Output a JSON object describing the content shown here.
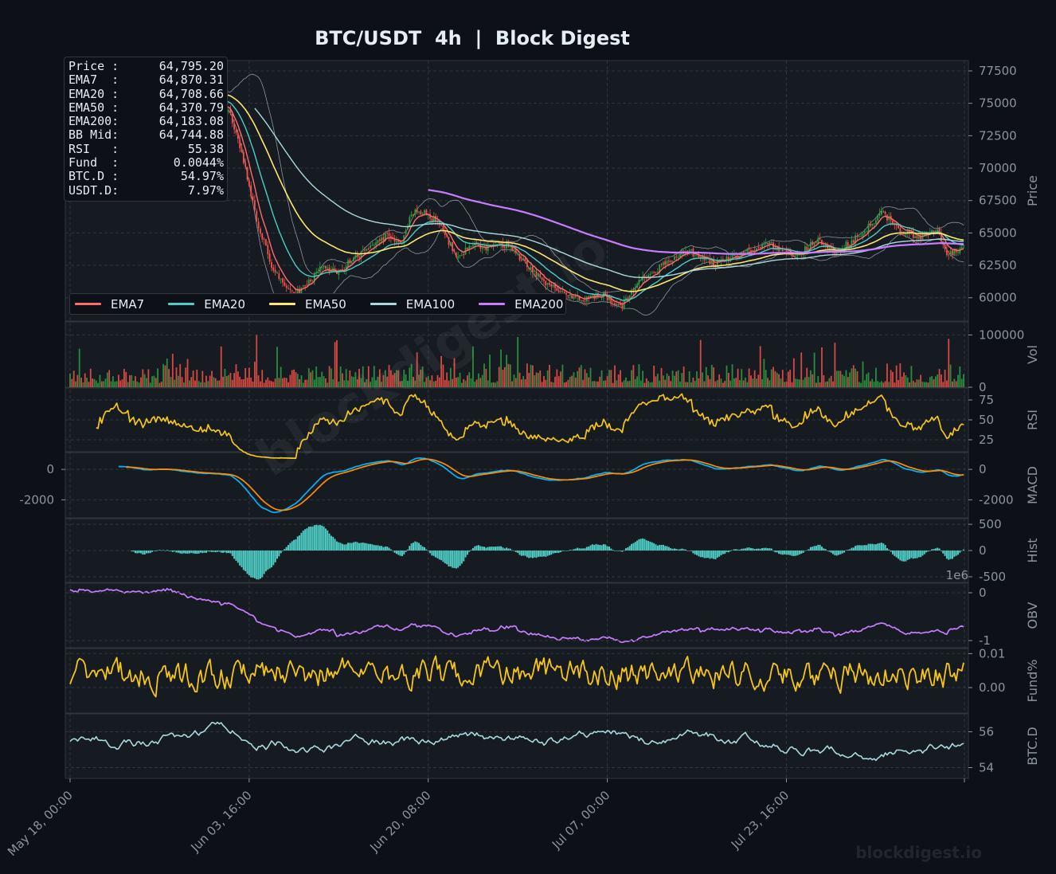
{
  "page": {
    "title": "BTC/USDT  4h  |  Block Digest",
    "watermark": "blockdigest.io",
    "footer_brand": "blockdigest.io"
  },
  "colors": {
    "background": "#0d1117",
    "panel": "#161b22",
    "grid": "#30363d",
    "axis_text": "#8b949e",
    "title": "#e6edf3",
    "up_candle": "#2ea043",
    "down_candle": "#f85149",
    "ema7": "#ff6b6b",
    "ema20": "#4ecdc4",
    "ema50": "#ffe66d",
    "ema100": "#a8dadc",
    "ema200": "#c77dff",
    "rsi": "#f5c518",
    "macd": "#00b4ff",
    "signal": "#ff8c00",
    "hist": "#4ecdc4",
    "obv": "#c77dff",
    "funding": "#f5c518",
    "btcd": "#a8dadc"
  },
  "info_box": {
    "rows": [
      {
        "label": "Price :",
        "value": "64,795.20"
      },
      {
        "label": "EMA7  :",
        "value": "64,870.31"
      },
      {
        "label": "EMA20 :",
        "value": "64,708.66"
      },
      {
        "label": "EMA50 :",
        "value": "64,370.79"
      },
      {
        "label": "EMA200:",
        "value": "64,183.08"
      },
      {
        "label": "BB Mid:",
        "value": "64,744.88"
      },
      {
        "label": "RSI   :",
        "value": "55.38"
      },
      {
        "label": "Fund  :",
        "value": "0.0044%"
      },
      {
        "label": "BTC.D :",
        "value": "54.97%"
      },
      {
        "label": "USDT.D:",
        "value": "7.97%"
      }
    ]
  },
  "chart_data": {
    "type": "line",
    "title": "BTC/USDT  4h  |  Block Digest",
    "x_tick_labels": [
      "May 18, 00:00",
      "Jun 03, 16:00",
      "Jun 20, 08:00",
      "Jul 07, 00:00",
      "Jul 23, 16:00"
    ],
    "bars_count": 480,
    "grid": true,
    "legend": {
      "placement": "lower-left of price panel",
      "entries": [
        "EMA7",
        "EMA20",
        "EMA50",
        "EMA100",
        "EMA200"
      ]
    },
    "price": {
      "ylabel": "Price",
      "ylim": [
        58200,
        78300
      ],
      "ticks": [
        60000,
        62500,
        65000,
        67500,
        70000,
        72500,
        75000,
        77500
      ],
      "close_keypoints": [
        [
          0,
          76500
        ],
        [
          12,
          75600
        ],
        [
          25,
          77100
        ],
        [
          38,
          76300
        ],
        [
          50,
          76700
        ],
        [
          62,
          75800
        ],
        [
          75,
          75300
        ],
        [
          85,
          74500
        ],
        [
          92,
          71200
        ],
        [
          100,
          66000
        ],
        [
          108,
          62500
        ],
        [
          115,
          60800
        ],
        [
          120,
          60200
        ],
        [
          128,
          61200
        ],
        [
          135,
          62300
        ],
        [
          145,
          62000
        ],
        [
          150,
          62800
        ],
        [
          160,
          63800
        ],
        [
          170,
          64800
        ],
        [
          178,
          64200
        ],
        [
          183,
          66500
        ],
        [
          190,
          66700
        ],
        [
          198,
          65600
        ],
        [
          208,
          63000
        ],
        [
          215,
          64200
        ],
        [
          225,
          63800
        ],
        [
          235,
          64100
        ],
        [
          245,
          62500
        ],
        [
          255,
          61200
        ],
        [
          265,
          60300
        ],
        [
          275,
          59800
        ],
        [
          285,
          60300
        ],
        [
          295,
          59200
        ],
        [
          305,
          61400
        ],
        [
          315,
          62200
        ],
        [
          330,
          63700
        ],
        [
          345,
          62600
        ],
        [
          360,
          63400
        ],
        [
          375,
          64100
        ],
        [
          390,
          63200
        ],
        [
          400,
          64500
        ],
        [
          410,
          63500
        ],
        [
          425,
          65000
        ],
        [
          435,
          66500
        ],
        [
          445,
          65300
        ],
        [
          455,
          64600
        ],
        [
          465,
          65300
        ],
        [
          470,
          63300
        ],
        [
          480,
          64000
        ],
        [
          490,
          63600
        ],
        [
          500,
          62600
        ],
        [
          510,
          63900
        ],
        [
          525,
          64500
        ],
        [
          540,
          65000
        ],
        [
          560,
          64800
        ]
      ]
    },
    "volume": {
      "ylabel": "Vol",
      "ticks": [
        0,
        100000
      ]
    },
    "rsi": {
      "ylabel": "RSI",
      "ylim": [
        10,
        90
      ],
      "ticks": [
        25,
        50,
        75
      ],
      "last": 55.38
    },
    "macd": {
      "ylabel": "MACD",
      "ticks": [
        -2000,
        0
      ],
      "series": [
        "MACD",
        "Signal"
      ]
    },
    "histogram": {
      "ylabel": "Hist",
      "ticks": [
        -500,
        0,
        500
      ]
    },
    "obv": {
      "ylabel": "OBV",
      "ticks": [
        -1,
        0
      ],
      "scale_label": "1e6"
    },
    "funding": {
      "ylabel": "Fund%",
      "ticks": [
        0.0,
        0.01
      ],
      "tick_labels": [
        "0.00",
        "0.01"
      ],
      "last": 0.0044
    },
    "btc_dominance": {
      "ylabel": "BTC.D",
      "ticks": [
        54,
        56
      ],
      "last": 54.97
    }
  }
}
